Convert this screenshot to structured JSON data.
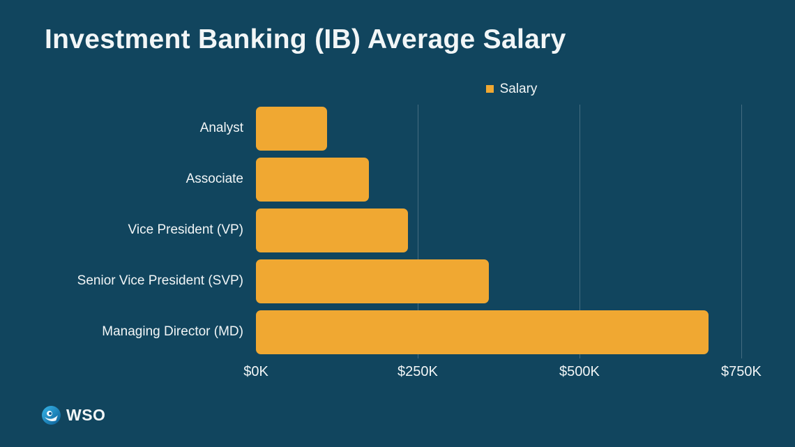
{
  "title": "Investment Banking (IB) Average Salary",
  "legend": {
    "label": "Salary"
  },
  "brand": {
    "logo_text": "WSO"
  },
  "colors": {
    "background": "#11455E",
    "bar": "#F0A832",
    "text": "#F2F6F7",
    "gridline": "rgba(255,255,255,0.22)"
  },
  "chart_data": {
    "type": "bar",
    "orientation": "horizontal",
    "title": "Investment Banking (IB) Average Salary",
    "series_name": "Salary",
    "categories": [
      "Analyst",
      "Associate",
      "Vice President (VP)",
      "Senior Vice President (SVP)",
      "Managing Director (MD)"
    ],
    "values": [
      110,
      175,
      235,
      360,
      700
    ],
    "unit": "thousand USD",
    "xlabel": "",
    "ylabel": "",
    "x_ticks": [
      "$0K",
      "$250K",
      "$500K",
      "$750K"
    ],
    "x_tick_values": [
      0,
      250,
      500,
      750
    ],
    "x_max": 790,
    "grid": "vertical",
    "legend_position": "top-center"
  }
}
